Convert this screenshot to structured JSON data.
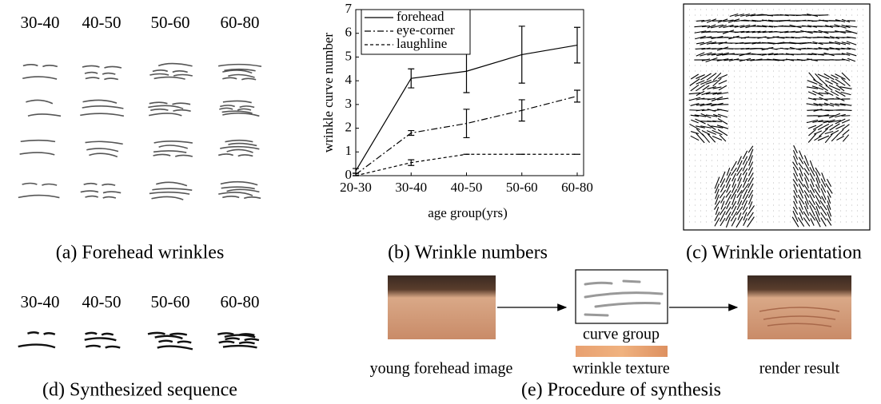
{
  "panel_a": {
    "headers": [
      "30-40",
      "40-50",
      "50-60",
      "60-80"
    ],
    "caption": "(a) Forehead wrinkles"
  },
  "chart_data": {
    "type": "line",
    "caption": "(b) Wrinkle numbers",
    "xlabel": "age group(yrs)",
    "ylabel": "wrinkle curve number",
    "categories": [
      "20-30",
      "30-40",
      "40-50",
      "50-60",
      "60-80"
    ],
    "ylim": [
      0,
      7
    ],
    "yticks": [
      0,
      1,
      2,
      3,
      4,
      5,
      6,
      7
    ],
    "legend": "upper left",
    "series": [
      {
        "name": "forehead",
        "color": "#000000",
        "style": "solid",
        "values": [
          0.2,
          4.1,
          4.4,
          5.1,
          5.5
        ],
        "errors": [
          0.1,
          0.4,
          0.9,
          1.2,
          0.75
        ]
      },
      {
        "name": "eye-corner",
        "color": "#000000",
        "style": "dashdot",
        "values": [
          0.05,
          1.8,
          2.2,
          2.75,
          3.35
        ],
        "errors": [
          0.05,
          0.1,
          0.6,
          0.45,
          0.25
        ]
      },
      {
        "name": "laughline",
        "color": "#000000",
        "style": "dashed",
        "values": [
          0,
          0.55,
          0.9,
          0.9,
          0.9
        ],
        "errors": [
          0,
          0.12,
          0,
          0,
          0
        ]
      }
    ]
  },
  "panel_c": {
    "caption": "(c) Wrinkle orientation"
  },
  "panel_d": {
    "headers": [
      "30-40",
      "40-50",
      "50-60",
      "60-80"
    ],
    "caption": "(d) Synthesized sequence"
  },
  "panel_e": {
    "labels": [
      "young forehead image",
      "curve group",
      "wrinkle texture",
      "render result"
    ],
    "caption": "(e) Procedure of synthesis"
  }
}
